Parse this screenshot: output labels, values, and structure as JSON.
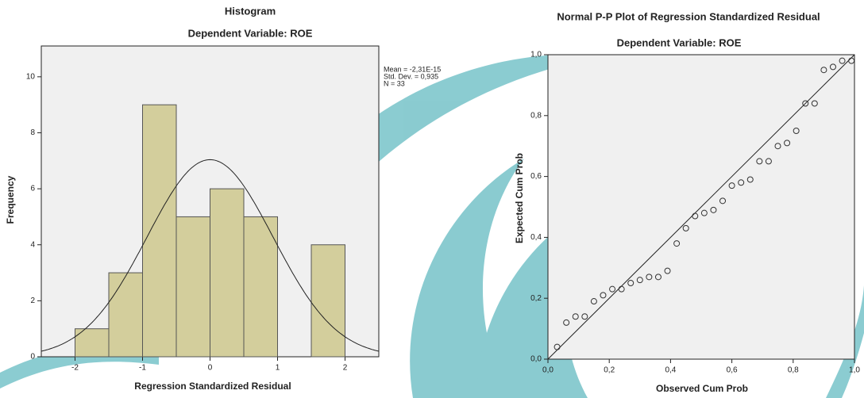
{
  "chart_data": [
    {
      "type": "histogram",
      "title": "Histogram",
      "subtitle": "Dependent Variable: ROE",
      "x_label": "Regression Standardized Residual",
      "y_label": "Frequency",
      "bins": [
        -2.0,
        -1.5,
        -1.0,
        -0.5,
        0,
        0.5,
        1.0,
        1.5,
        2.0
      ],
      "values": [
        1,
        3,
        9,
        5,
        6,
        5,
        0,
        4
      ],
      "color": "#d3ce9c",
      "xlim": [
        -2.5,
        2.5
      ],
      "xticks": [
        -2,
        -1,
        0,
        1,
        2
      ],
      "ylim": [
        0,
        11.1
      ],
      "yticks": [
        0,
        2,
        4,
        6,
        8,
        10
      ],
      "stats": [
        {
          "value": -2.31e-15,
          "label": "Mean = -2,31E-15"
        },
        {
          "value": 0.935,
          "label": "Std. Dev. = 0,935"
        },
        {
          "value": 33,
          "label": "N = 33"
        }
      ]
    },
    {
      "type": "scatter",
      "title": "Normal P-P Plot of Regression Standardized Residual",
      "subtitle": "Dependent Variable: ROE",
      "x_label": "Observed Cum Prob",
      "y_label": "Expected Cum Prob",
      "x": [
        0.03,
        0.06,
        0.09,
        0.12,
        0.15,
        0.18,
        0.21,
        0.24,
        0.27,
        0.3,
        0.33,
        0.36,
        0.39,
        0.42,
        0.45,
        0.48,
        0.51,
        0.54,
        0.57,
        0.6,
        0.63,
        0.66,
        0.69,
        0.72,
        0.75,
        0.78,
        0.81,
        0.84,
        0.87,
        0.9,
        0.93,
        0.96,
        0.99
      ],
      "values": [
        0.04,
        0.12,
        0.14,
        0.14,
        0.19,
        0.21,
        0.23,
        0.23,
        0.25,
        0.26,
        0.27,
        0.27,
        0.29,
        0.38,
        0.43,
        0.47,
        0.48,
        0.49,
        0.52,
        0.57,
        0.58,
        0.59,
        0.65,
        0.65,
        0.7,
        0.71,
        0.75,
        0.84,
        0.84,
        0.95,
        0.96,
        0.98,
        0.98
      ],
      "xlim": [
        0,
        1
      ],
      "ylim": [
        0,
        1
      ],
      "xticks": [
        {
          "value": 0,
          "label": "0,0"
        },
        {
          "value": 0.2,
          "label": "0,2"
        },
        {
          "value": 0.4,
          "label": "0,4"
        },
        {
          "value": 0.6,
          "label": "0,6"
        },
        {
          "value": 0.8,
          "label": "0,8"
        },
        {
          "value": 1,
          "label": "1,0"
        }
      ],
      "yticks": [
        {
          "value": 0,
          "label": "0,0"
        },
        {
          "value": 0.2,
          "label": "0,2"
        },
        {
          "value": 0.4,
          "label": "0,4"
        },
        {
          "value": 0.6,
          "label": "0,6"
        },
        {
          "value": 0.8,
          "label": "0,8"
        },
        {
          "value": 1,
          "label": "1,0"
        }
      ]
    }
  ]
}
